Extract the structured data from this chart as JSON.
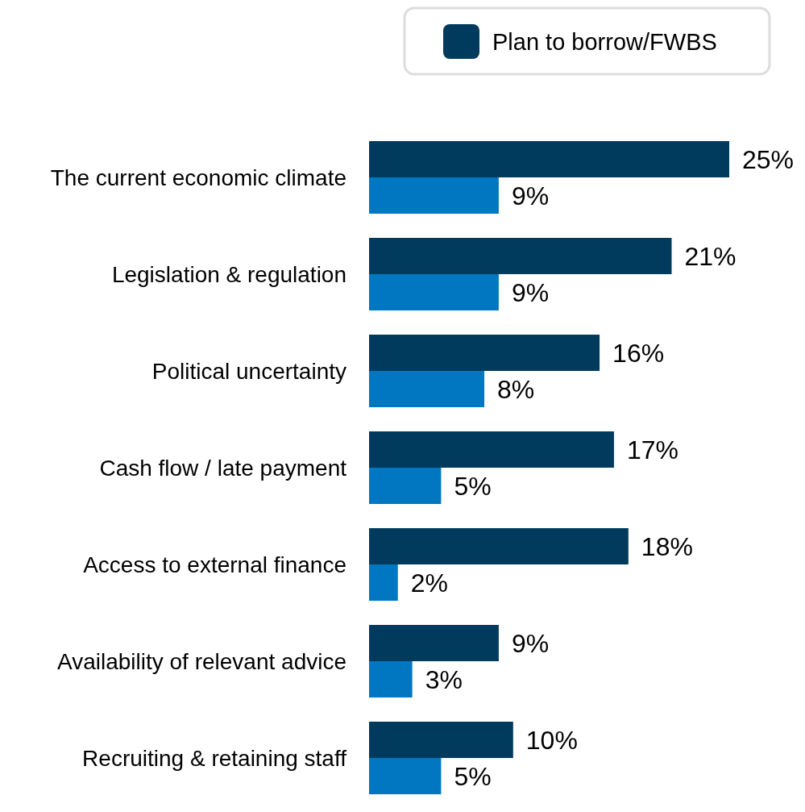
{
  "chart_data": {
    "type": "bar",
    "orientation": "horizontal",
    "legend": "top right",
    "categories": [
      "The current economic climate",
      "Legislation & regulation",
      "Political uncertainty",
      "Cash flow / late payment",
      "Access to external finance",
      "Availability of relevant advice",
      "Recruiting & retaining staff"
    ],
    "series": [
      {
        "name": "Plan to borrow/FWBS",
        "color": "#003a5d",
        "values": [
          25,
          21,
          16,
          17,
          18,
          9,
          10
        ],
        "value_labels": [
          "25%",
          "21%",
          "16%",
          "17%",
          "18%",
          "9%",
          "10%"
        ]
      },
      {
        "color": "#0077c0",
        "values": [
          9,
          9,
          8,
          5,
          2,
          3,
          5
        ],
        "value_labels": [
          "9%",
          "9%",
          "8%",
          "5%",
          "2%",
          "3%",
          "5%"
        ]
      }
    ]
  }
}
